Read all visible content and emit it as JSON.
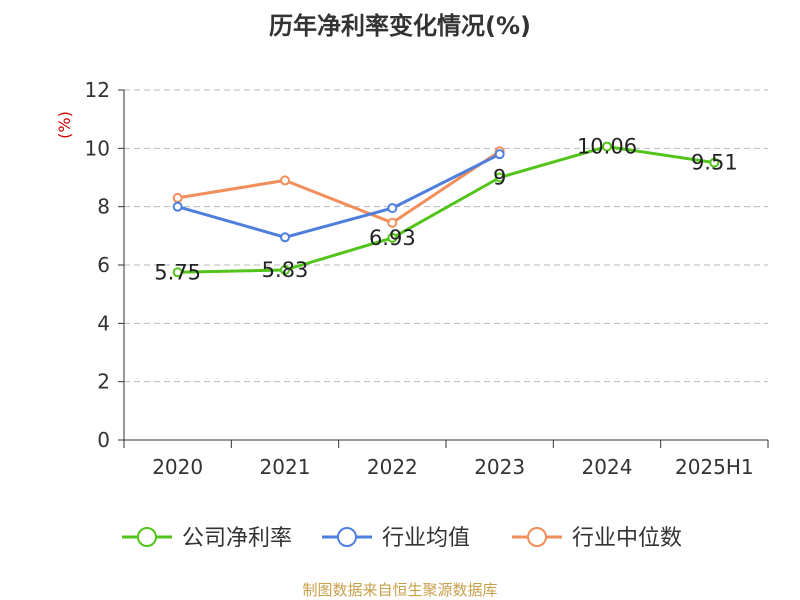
{
  "source_text": "制图数据来自恒生聚源数据库",
  "colors": {
    "source": "#c8a04a",
    "unit": "#cc0000",
    "axis": "#333333",
    "grid": "#bbbbbb"
  },
  "chart_data": {
    "type": "line",
    "title": "历年净利率变化情况(%)",
    "ylabel": "(%)",
    "xlabel": "",
    "categories": [
      "2020",
      "2021",
      "2022",
      "2023",
      "2024",
      "2025H1"
    ],
    "ylim": [
      0,
      12
    ],
    "yticks": [
      0,
      2,
      4,
      6,
      8,
      10,
      12
    ],
    "grid": true,
    "legend_position": "bottom",
    "series": [
      {
        "name": "公司净利率",
        "color": "#52c41a",
        "values": [
          5.75,
          5.83,
          6.93,
          9,
          10.06,
          9.51
        ],
        "labels": [
          "5.75",
          "5.83",
          "6.93",
          "9",
          "10.06",
          "9.51"
        ]
      },
      {
        "name": "行业均值",
        "color": "#4f7fdc",
        "values": [
          8.0,
          6.95,
          7.95,
          9.8,
          null,
          null
        ],
        "labels": []
      },
      {
        "name": "行业中位数",
        "color": "#f28e5a",
        "values": [
          8.3,
          8.9,
          7.45,
          9.9,
          null,
          null
        ],
        "labels": []
      }
    ]
  }
}
